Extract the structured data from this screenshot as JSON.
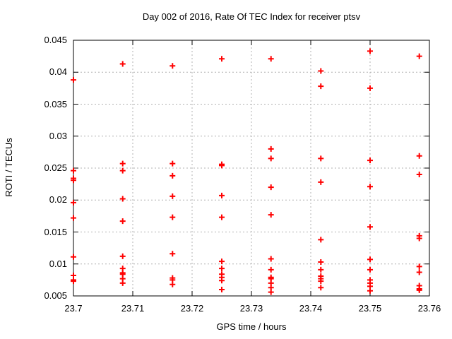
{
  "title": "Day 002 of 2016, Rate Of TEC Index for receiver ptsv",
  "chart_data": {
    "type": "scatter",
    "title": "Day 002 of 2016, Rate Of TEC Index for receiver ptsv",
    "xlabel": "GPS time / hours",
    "ylabel": "ROTI / TECUs",
    "xlim": [
      23.7,
      23.76
    ],
    "ylim": [
      0.005,
      0.045
    ],
    "xticks": [
      23.7,
      23.71,
      23.72,
      23.73,
      23.74,
      23.75,
      23.76
    ],
    "xtick_labels": [
      "23.7",
      "23.71",
      "23.72",
      "23.73",
      "23.74",
      "23.75",
      "23.76"
    ],
    "yticks": [
      0.005,
      0.01,
      0.015,
      0.02,
      0.025,
      0.03,
      0.035,
      0.04,
      0.045
    ],
    "ytick_labels": [
      "0.005",
      "0.01",
      "0.015",
      "0.02",
      "0.025",
      "0.03",
      "0.035",
      "0.04",
      "0.045"
    ],
    "grid": true,
    "legend": "none",
    "marker": "plus",
    "marker_color": "#ff0000",
    "grid_color": "#b0b0b0",
    "axis_color": "#000000",
    "points": [
      [
        23.7,
        0.0388
      ],
      [
        23.7,
        0.0246
      ],
      [
        23.7,
        0.0234
      ],
      [
        23.7,
        0.0231
      ],
      [
        23.7,
        0.0196
      ],
      [
        23.7,
        0.0172
      ],
      [
        23.7,
        0.0111
      ],
      [
        23.7,
        0.0082
      ],
      [
        23.7,
        0.0075
      ],
      [
        23.7,
        0.0073
      ],
      [
        23.7083,
        0.0413
      ],
      [
        23.7083,
        0.0257
      ],
      [
        23.7083,
        0.0246
      ],
      [
        23.7083,
        0.0202
      ],
      [
        23.7083,
        0.0167
      ],
      [
        23.7083,
        0.0112
      ],
      [
        23.7083,
        0.0093
      ],
      [
        23.7083,
        0.0086
      ],
      [
        23.7083,
        0.0084
      ],
      [
        23.7083,
        0.0077
      ],
      [
        23.7083,
        0.007
      ],
      [
        23.7167,
        0.041
      ],
      [
        23.7167,
        0.0257
      ],
      [
        23.7167,
        0.0238
      ],
      [
        23.7167,
        0.0206
      ],
      [
        23.7167,
        0.0173
      ],
      [
        23.7167,
        0.0116
      ],
      [
        23.7167,
        0.0078
      ],
      [
        23.7167,
        0.0075
      ],
      [
        23.7167,
        0.0068
      ],
      [
        23.725,
        0.0421
      ],
      [
        23.725,
        0.0256
      ],
      [
        23.725,
        0.0254
      ],
      [
        23.725,
        0.0207
      ],
      [
        23.725,
        0.0173
      ],
      [
        23.725,
        0.0104
      ],
      [
        23.725,
        0.0093
      ],
      [
        23.725,
        0.0084
      ],
      [
        23.725,
        0.0079
      ],
      [
        23.725,
        0.0074
      ],
      [
        23.725,
        0.006
      ],
      [
        23.7333,
        0.0421
      ],
      [
        23.7333,
        0.028
      ],
      [
        23.7333,
        0.0265
      ],
      [
        23.7333,
        0.022
      ],
      [
        23.7333,
        0.0177
      ],
      [
        23.7333,
        0.0108
      ],
      [
        23.7333,
        0.0091
      ],
      [
        23.7333,
        0.0079
      ],
      [
        23.7333,
        0.0077
      ],
      [
        23.7333,
        0.007
      ],
      [
        23.7333,
        0.0063
      ],
      [
        23.7333,
        0.0056
      ],
      [
        23.7417,
        0.0402
      ],
      [
        23.7417,
        0.0378
      ],
      [
        23.7417,
        0.0265
      ],
      [
        23.7417,
        0.0228
      ],
      [
        23.7417,
        0.0138
      ],
      [
        23.7417,
        0.0103
      ],
      [
        23.7417,
        0.0091
      ],
      [
        23.7417,
        0.0081
      ],
      [
        23.7417,
        0.0077
      ],
      [
        23.7417,
        0.0073
      ],
      [
        23.7417,
        0.0063
      ],
      [
        23.75,
        0.0433
      ],
      [
        23.75,
        0.0375
      ],
      [
        23.75,
        0.0262
      ],
      [
        23.75,
        0.0221
      ],
      [
        23.75,
        0.0158
      ],
      [
        23.75,
        0.0107
      ],
      [
        23.75,
        0.0091
      ],
      [
        23.75,
        0.0075
      ],
      [
        23.75,
        0.007
      ],
      [
        23.75,
        0.0065
      ],
      [
        23.75,
        0.0058
      ],
      [
        23.7583,
        0.0425
      ],
      [
        23.7583,
        0.0269
      ],
      [
        23.7583,
        0.024
      ],
      [
        23.7583,
        0.0144
      ],
      [
        23.7583,
        0.014
      ],
      [
        23.7583,
        0.0096
      ],
      [
        23.7583,
        0.0087
      ],
      [
        23.7583,
        0.0066
      ],
      [
        23.7583,
        0.0061
      ],
      [
        23.7583,
        0.0059
      ]
    ]
  }
}
